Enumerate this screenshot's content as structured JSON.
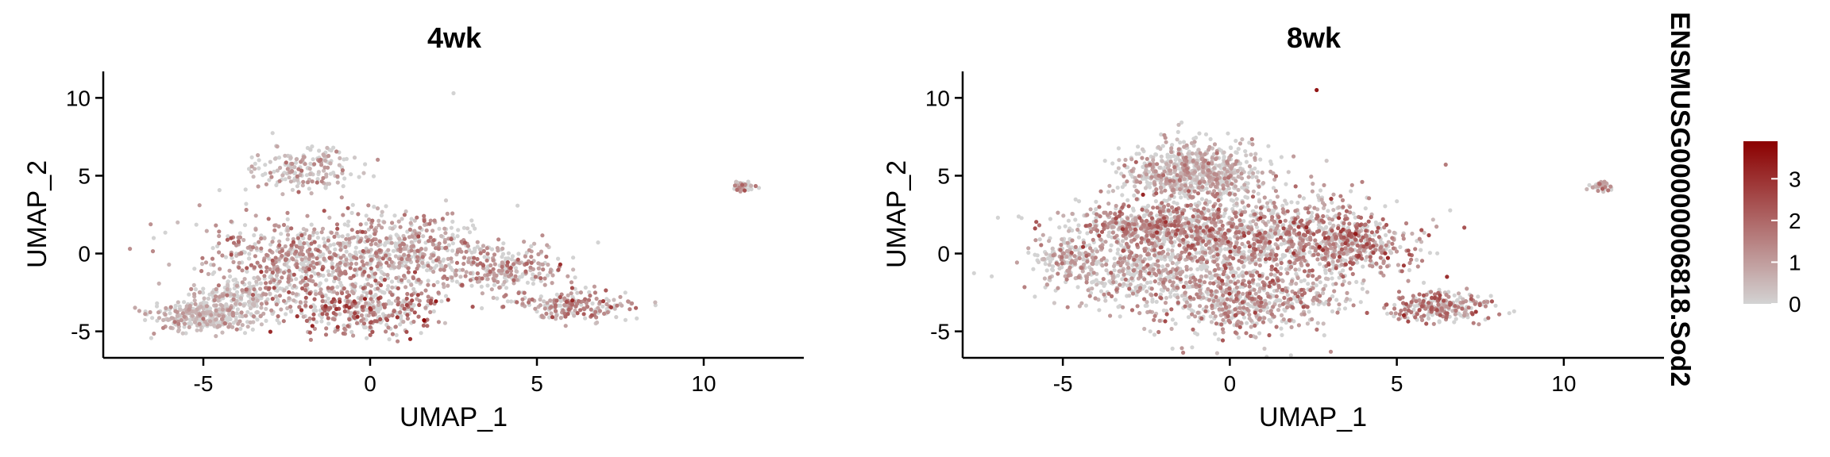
{
  "chart_data": [
    {
      "type": "scatter",
      "title": "4wk",
      "xlabel": "UMAP_1",
      "ylabel": "UMAP_2",
      "xlim": [
        -8.0,
        13.0
      ],
      "ylim": [
        -6.7,
        11.7
      ],
      "xticks": [
        -5,
        0,
        5,
        10
      ],
      "yticks": [
        -5,
        0,
        5,
        10
      ],
      "xtick_labels": [
        "-5",
        "0",
        "5",
        "10"
      ],
      "ytick_labels": [
        "-5",
        "0",
        "5",
        "10"
      ],
      "grid": false,
      "point_count": 2600,
      "clusters": [
        {
          "cx": -5.0,
          "cy": -4.0,
          "sx": 0.8,
          "sy": 0.5,
          "n": 300,
          "expr": 0.4
        },
        {
          "cx": -1.8,
          "cy": -0.3,
          "sx": 1.6,
          "sy": 1.4,
          "n": 650,
          "expr": 1.0
        },
        {
          "cx": 0.0,
          "cy": -3.6,
          "sx": 1.1,
          "sy": 0.8,
          "n": 350,
          "expr": 1.5
        },
        {
          "cx": 1.3,
          "cy": 0.2,
          "sx": 1.0,
          "sy": 1.2,
          "n": 350,
          "expr": 0.8
        },
        {
          "cx": -2.0,
          "cy": 5.4,
          "sx": 0.8,
          "sy": 0.8,
          "n": 180,
          "expr": 0.5
        },
        {
          "cx": -3.6,
          "cy": -2.8,
          "sx": 0.8,
          "sy": 0.7,
          "n": 180,
          "expr": 0.6
        },
        {
          "cx": 4.0,
          "cy": -1.0,
          "sx": 0.9,
          "sy": 0.7,
          "n": 240,
          "expr": 0.9
        },
        {
          "cx": 6.0,
          "cy": -3.3,
          "sx": 0.9,
          "sy": 0.45,
          "n": 200,
          "expr": 1.1
        },
        {
          "cx": 11.2,
          "cy": 4.3,
          "sx": 0.18,
          "sy": 0.15,
          "n": 40,
          "expr": 1.0
        }
      ],
      "outliers": [
        {
          "x": 2.5,
          "y": 10.3,
          "v": 0.0
        },
        {
          "x": 5.7,
          "y": -0.7,
          "v": 3.0
        }
      ]
    },
    {
      "type": "scatter",
      "title": "8wk",
      "xlabel": "UMAP_1",
      "ylabel": "UMAP_2",
      "xlim": [
        -8.0,
        13.0
      ],
      "ylim": [
        -6.7,
        11.7
      ],
      "xticks": [
        -5,
        0,
        5,
        10
      ],
      "yticks": [
        -5,
        0,
        5,
        10
      ],
      "xtick_labels": [
        "-5",
        "0",
        "5",
        "10"
      ],
      "ytick_labels": [
        "-5",
        "0",
        "5",
        "10"
      ],
      "grid": false,
      "point_count": 4200,
      "clusters": [
        {
          "cx": -1.0,
          "cy": 5.2,
          "sx": 1.0,
          "sy": 0.9,
          "n": 700,
          "expr": 0.6
        },
        {
          "cx": -2.2,
          "cy": 1.8,
          "sx": 1.4,
          "sy": 0.8,
          "n": 600,
          "expr": 1.1
        },
        {
          "cx": 1.0,
          "cy": 1.0,
          "sx": 1.8,
          "sy": 1.5,
          "n": 900,
          "expr": 1.0
        },
        {
          "cx": 3.6,
          "cy": 0.6,
          "sx": 0.9,
          "sy": 0.9,
          "n": 350,
          "expr": 1.3
        },
        {
          "cx": -2.8,
          "cy": -1.2,
          "sx": 1.4,
          "sy": 1.0,
          "n": 400,
          "expr": 0.7
        },
        {
          "cx": 0.4,
          "cy": -3.0,
          "sx": 1.5,
          "sy": 1.2,
          "n": 600,
          "expr": 1.0
        },
        {
          "cx": -4.9,
          "cy": -0.2,
          "sx": 0.5,
          "sy": 0.5,
          "n": 120,
          "expr": 0.6
        },
        {
          "cx": 6.3,
          "cy": -3.4,
          "sx": 0.8,
          "sy": 0.5,
          "n": 250,
          "expr": 1.2
        },
        {
          "cx": 11.1,
          "cy": 4.3,
          "sx": 0.18,
          "sy": 0.15,
          "n": 40,
          "expr": 0.8
        }
      ],
      "outliers": [
        {
          "x": 2.6,
          "y": 10.5,
          "v": 3.5
        }
      ]
    }
  ],
  "legend": {
    "title": "ENSMUSG00000006818.Sod2",
    "placement": "right",
    "range": [
      0,
      3.9
    ],
    "ticks": [
      0,
      1,
      2,
      3
    ],
    "tick_labels": [
      "0",
      "1",
      "2",
      "3"
    ],
    "colors": {
      "low": "#d3d3d3",
      "high": "#8b0000"
    }
  }
}
